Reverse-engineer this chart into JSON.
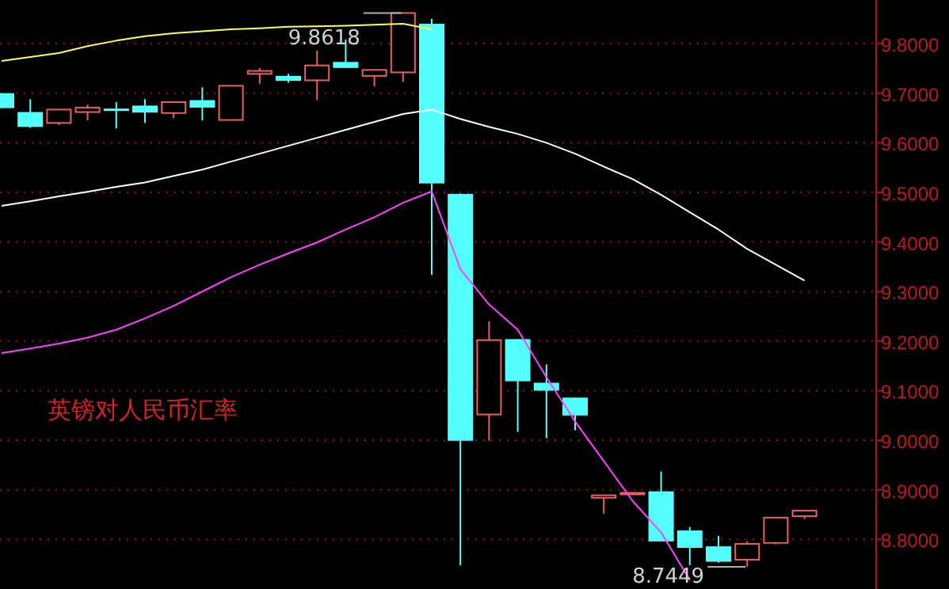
{
  "chart_data": {
    "type": "candlestick",
    "title": "英镑对人民币汇率",
    "categories": [
      null,
      null,
      null,
      null,
      null,
      null,
      null,
      null,
      null,
      null,
      null,
      null,
      null,
      null,
      null,
      null,
      null,
      null,
      null,
      null,
      null,
      null,
      null,
      null,
      null,
      null,
      null,
      null,
      null
    ],
    "ohlc": [
      [
        9.7,
        9.7,
        9.67,
        9.67
      ],
      [
        9.662,
        9.688,
        9.63,
        9.632
      ],
      [
        9.64,
        9.667,
        9.636,
        9.667
      ],
      [
        9.662,
        9.677,
        9.645,
        9.671
      ],
      [
        9.669,
        9.682,
        9.629,
        9.666
      ],
      [
        9.675,
        9.688,
        9.64,
        9.661
      ],
      [
        9.66,
        9.682,
        9.65,
        9.682
      ],
      [
        9.686,
        9.712,
        9.645,
        9.671
      ],
      [
        9.646,
        9.715,
        9.646,
        9.715
      ],
      [
        9.739,
        9.751,
        9.719,
        9.745
      ],
      [
        9.735,
        9.739,
        9.721,
        9.725
      ],
      [
        9.726,
        9.786,
        9.686,
        9.756
      ],
      [
        9.763,
        9.808,
        9.751,
        9.751
      ],
      [
        9.735,
        9.747,
        9.714,
        9.747
      ],
      [
        9.742,
        9.8618,
        9.723,
        9.8618
      ],
      [
        9.84,
        9.85,
        9.334,
        9.518
      ],
      [
        9.497,
        9.497,
        8.748,
        8.999
      ],
      [
        9.052,
        9.24,
        8.999,
        9.202
      ],
      [
        9.204,
        9.204,
        9.017,
        9.119
      ],
      [
        9.116,
        9.153,
        9.004,
        9.1
      ],
      [
        9.086,
        9.086,
        9.02,
        9.05
      ],
      [
        8.884,
        8.889,
        8.852,
        8.889
      ],
      [
        8.891,
        8.894,
        8.891,
        8.894
      ],
      [
        8.897,
        8.937,
        8.796,
        8.796
      ],
      [
        8.818,
        8.825,
        8.748,
        8.783
      ],
      [
        8.786,
        8.807,
        8.753,
        8.755
      ],
      [
        8.759,
        8.796,
        8.7449,
        8.791
      ],
      [
        8.793,
        8.844,
        8.79,
        8.844
      ],
      [
        8.847,
        8.858,
        8.841,
        8.858
      ]
    ],
    "colors": [
      "#54ffff",
      "#54ffff",
      "#e86060",
      "#e86060",
      "#54ffff",
      "#54ffff",
      "#e86060",
      "#54ffff",
      "#e86060",
      "#e86060",
      "#54ffff",
      "#e86060",
      "#54ffff",
      "#e86060",
      "#e86060",
      "#54ffff",
      "#54ffff",
      "#e86060",
      "#54ffff",
      "#54ffff",
      "#54ffff",
      "#e86060",
      "#e86060",
      "#54ffff",
      "#54ffff",
      "#54ffff",
      "#e86060",
      "#e86060",
      "#e86060"
    ],
    "series": [
      {
        "type": "line",
        "color": "#ffff50",
        "values": [
          9.765,
          9.773,
          9.781,
          9.795,
          9.806,
          9.815,
          9.821,
          9.825,
          9.829,
          9.831,
          9.834,
          9.835,
          9.836,
          9.838,
          9.84,
          9.829,
          null,
          null,
          null,
          null,
          null,
          null,
          null,
          null,
          null,
          null,
          null,
          null,
          null
        ]
      },
      {
        "type": "line",
        "color": "#ffffff",
        "values": [
          9.473,
          9.482,
          9.492,
          9.501,
          9.511,
          9.52,
          9.533,
          9.546,
          9.562,
          9.578,
          9.594,
          9.61,
          9.626,
          9.642,
          9.658,
          9.667,
          9.648,
          9.632,
          9.618,
          9.6,
          9.578,
          9.552,
          9.527,
          9.495,
          9.46,
          9.425,
          9.386,
          9.354,
          9.322
        ]
      },
      {
        "type": "line",
        "color": "#ff40ff",
        "values": [
          9.176,
          9.185,
          9.195,
          9.207,
          9.223,
          9.246,
          9.271,
          9.3,
          9.329,
          9.354,
          9.377,
          9.399,
          9.425,
          9.45,
          9.479,
          9.502,
          9.345,
          9.274,
          9.223,
          9.127,
          9.038,
          8.958,
          8.878,
          8.814,
          8.718,
          null,
          null,
          null,
          null
        ]
      }
    ],
    "ylim": [
      8.7,
      9.888
    ],
    "yticks": [
      {
        "value": 8.8,
        "label": "8.8000"
      },
      {
        "value": 8.9,
        "label": "8.9000"
      },
      {
        "value": 9.0,
        "label": "9.0000"
      },
      {
        "value": 9.1,
        "label": "9.1000"
      },
      {
        "value": 9.2,
        "label": "9.2000"
      },
      {
        "value": 9.3,
        "label": "9.3000"
      },
      {
        "value": 9.4,
        "label": "9.4000"
      },
      {
        "value": 9.5,
        "label": "9.5000"
      },
      {
        "value": 9.6,
        "label": "9.6000"
      },
      {
        "value": 9.7,
        "label": "9.7000"
      },
      {
        "value": 9.8,
        "label": "9.8000"
      }
    ],
    "grid": "y",
    "annotations": [
      "9.8618",
      "8.7449"
    ]
  }
}
